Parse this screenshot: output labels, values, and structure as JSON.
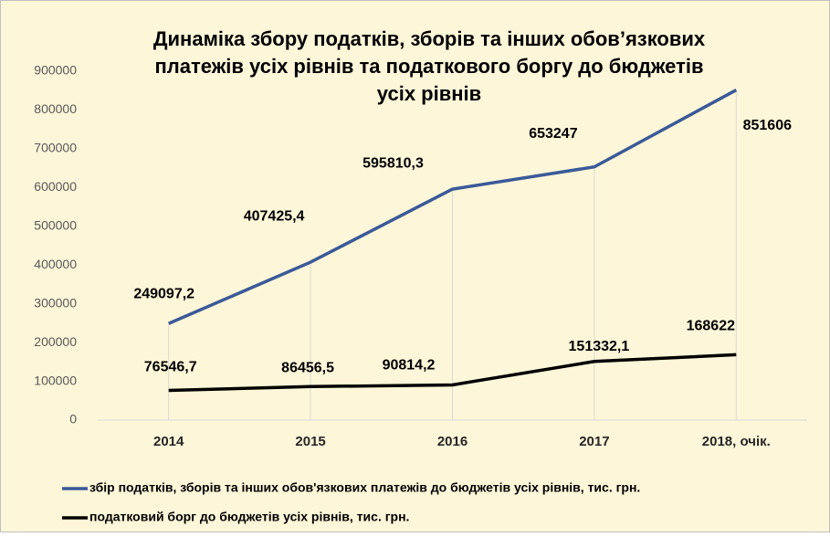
{
  "chart_data": {
    "type": "line",
    "title": "Динаміка збору податків, зборів та інших обов’язкових платежів усіх рівнів та податкового боргу до бюджетів усіх рівнів",
    "categories": [
      "2014",
      "2015",
      "2016",
      "2017",
      "2018, очік."
    ],
    "series": [
      {
        "name": "збір податків, зборів та інших обов'язкових платежів до бюджетів усіх рівнів, тис. грн.",
        "color": "#3a5a98",
        "values": [
          249097.2,
          407425.4,
          595810.3,
          653247,
          851606
        ],
        "value_labels": [
          "249097,2",
          "407425,4",
          "595810,3",
          "653247",
          "851606"
        ]
      },
      {
        "name": "податковий борг до бюджетів усіх рівнів, тис. грн.",
        "color": "#000000",
        "values": [
          76546.7,
          86456.5,
          90814.2,
          151332.1,
          168622
        ],
        "value_labels": [
          "76546,7",
          "86456,5",
          "90814,2",
          "151332,1",
          "168622"
        ]
      }
    ],
    "ylim": [
      0,
      900000
    ],
    "yticks": [
      0,
      100000,
      200000,
      300000,
      400000,
      500000,
      600000,
      700000,
      800000,
      900000
    ],
    "legend": "bottom"
  }
}
